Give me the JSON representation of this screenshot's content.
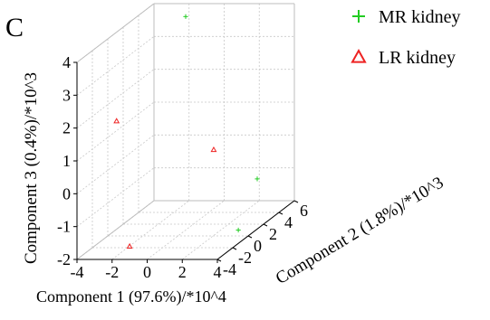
{
  "chart_data": {
    "type": "scatter",
    "dimensions": 3,
    "panel_label": "C",
    "xlabel": "Component 1 (97.6%)/*10^4",
    "ylabel": "Component 2 (1.8%)/*10^3",
    "zlabel": "Component 3 (0.4%)/*10^3",
    "xlim": [
      -4,
      4
    ],
    "ylim": [
      -4,
      6
    ],
    "zlim": [
      -2,
      4
    ],
    "xticks": [
      "-4",
      "-2",
      "0",
      "2",
      "4"
    ],
    "yticks": [
      "-4",
      "-2",
      "0",
      "2",
      "4",
      "6"
    ],
    "zticks": [
      "-2",
      "-1",
      "0",
      "1",
      "2",
      "3",
      "4"
    ],
    "grid": true,
    "legend_position": "top-right",
    "series": [
      {
        "name": "MR kidney",
        "marker": "plus",
        "color": "#22cc22",
        "points": [
          {
            "x": 0.0,
            "y": 1.0,
            "z": 4.5
          },
          {
            "x": 3.2,
            "y": 3.0,
            "z": -0.8
          },
          {
            "x": 3.0,
            "y": 1.0,
            "z": -2.0
          }
        ]
      },
      {
        "name": "LR kidney",
        "marker": "triangle",
        "color": "#ee2222",
        "points": [
          {
            "x": -3.5,
            "y": 0.0,
            "z": 1.5
          },
          {
            "x": 0.5,
            "y": 3.5,
            "z": 0.0
          },
          {
            "x": -1.0,
            "y": -4.0,
            "z": -1.6
          }
        ]
      }
    ]
  }
}
